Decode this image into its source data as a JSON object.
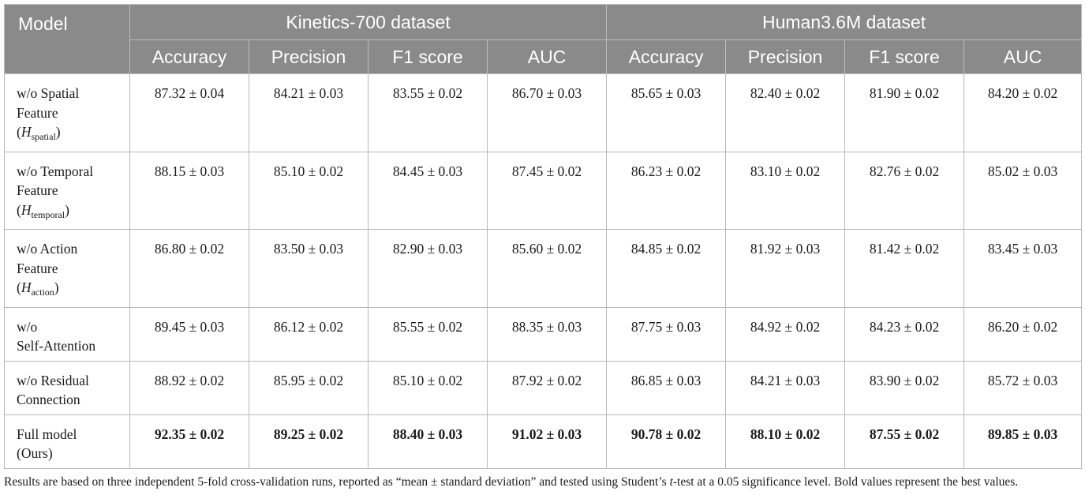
{
  "table": {
    "model_header": "Model",
    "groups": [
      "Kinetics-700 dataset",
      "Human3.6M dataset"
    ],
    "metrics": [
      "Accuracy",
      "Precision",
      "F1 score",
      "AUC",
      "Accuracy",
      "Precision",
      "F1 score",
      "AUC"
    ],
    "rows": [
      {
        "name_lines": [
          "w/o Spatial",
          "Feature"
        ],
        "symbol": "H",
        "symbol_sub": "spatial",
        "values": [
          "87.32 ± 0.04",
          "84.21 ± 0.03",
          "83.55 ± 0.02",
          "86.70 ± 0.03",
          "85.65 ± 0.03",
          "82.40 ± 0.02",
          "81.90 ± 0.02",
          "84.20 ± 0.02"
        ]
      },
      {
        "name_lines": [
          "w/o Temporal",
          "Feature"
        ],
        "symbol": "H",
        "symbol_sub": "temporal",
        "values": [
          "88.15 ± 0.03",
          "85.10 ± 0.02",
          "84.45 ± 0.03",
          "87.45 ± 0.02",
          "86.23 ± 0.02",
          "83.10 ± 0.02",
          "82.76 ± 0.02",
          "85.02 ± 0.03"
        ]
      },
      {
        "name_lines": [
          "w/o Action",
          "Feature"
        ],
        "symbol": "H",
        "symbol_sub": "action",
        "values": [
          "86.80 ± 0.02",
          "83.50 ± 0.03",
          "82.90 ± 0.03",
          "85.60 ± 0.02",
          "84.85 ± 0.02",
          "81.92 ± 0.03",
          "81.42 ± 0.02",
          "83.45 ± 0.03"
        ]
      },
      {
        "name_lines": [
          "w/o",
          "Self-Attention"
        ],
        "values": [
          "89.45 ± 0.03",
          "86.12 ± 0.02",
          "85.55 ± 0.02",
          "88.35 ± 0.03",
          "87.75 ± 0.03",
          "84.92 ± 0.02",
          "84.23 ± 0.02",
          "86.20 ± 0.02"
        ]
      },
      {
        "name_lines": [
          "w/o Residual",
          "Connection"
        ],
        "values": [
          "88.92 ± 0.02",
          "85.95 ± 0.02",
          "85.10 ± 0.02",
          "87.92 ± 0.02",
          "86.85 ± 0.03",
          "84.21 ± 0.03",
          "83.90 ± 0.02",
          "85.72 ± 0.03"
        ]
      },
      {
        "name_lines": [
          "Full model",
          "(Ours)"
        ],
        "values": [
          "92.35 ± 0.02",
          "89.25 ± 0.02",
          "88.40 ± 0.03",
          "91.02 ± 0.03",
          "90.78 ± 0.02",
          "88.10 ± 0.02",
          "87.55 ± 0.02",
          "89.85 ± 0.03"
        ]
      }
    ]
  },
  "footnote": {
    "part1": "Results are based on three independent 5-fold cross-validation runs, reported as “mean ± standard deviation” and tested using Student’s ",
    "italic": "t",
    "part2": "-test at a 0.05 significance level. Bold values represent the best values."
  }
}
